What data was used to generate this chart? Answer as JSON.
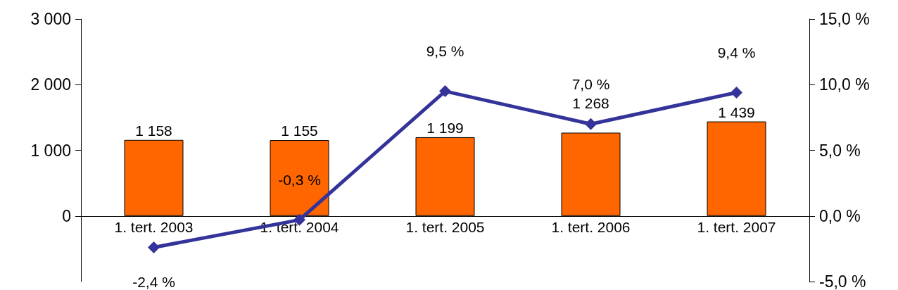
{
  "chart_data": {
    "type": "bar",
    "categories": [
      "1. tert. 2003",
      "1. tert. 2004",
      "1. tert. 2005",
      "1. tert. 2006",
      "1. tert. 2007"
    ],
    "series": [
      {
        "type": "bar",
        "color": "#ff6600",
        "values": [
          1158,
          1155,
          1199,
          1268,
          1439
        ],
        "value_labels": [
          "1 158",
          "1 155",
          "1 199",
          "1 268",
          "1 439"
        ]
      },
      {
        "type": "line",
        "axis": "y2",
        "color": "#333399",
        "values": [
          -2.4,
          -0.3,
          9.5,
          7.0,
          9.4
        ],
        "value_labels": [
          "-2,4 %",
          "-0,3 %",
          "9,5 %",
          "7,0 %",
          "9,4 %"
        ]
      }
    ],
    "ylim": [
      -1000,
      3000
    ],
    "yticks": [
      {
        "value": 0,
        "label": "0"
      },
      {
        "value": 1000,
        "label": "1 000"
      },
      {
        "value": 2000,
        "label": "2 000"
      },
      {
        "value": 3000,
        "label": "3 000"
      }
    ],
    "y2lim": [
      -5,
      15
    ],
    "y2ticks": [
      {
        "value": -5,
        "label": "-5,0 %"
      },
      {
        "value": 0,
        "label": "0,0 %"
      },
      {
        "value": 5,
        "label": "5,0 %"
      },
      {
        "value": 10,
        "label": "10,0 %"
      },
      {
        "value": 15,
        "label": "15,0 %"
      }
    ],
    "marker": "diamond",
    "grid": false
  }
}
